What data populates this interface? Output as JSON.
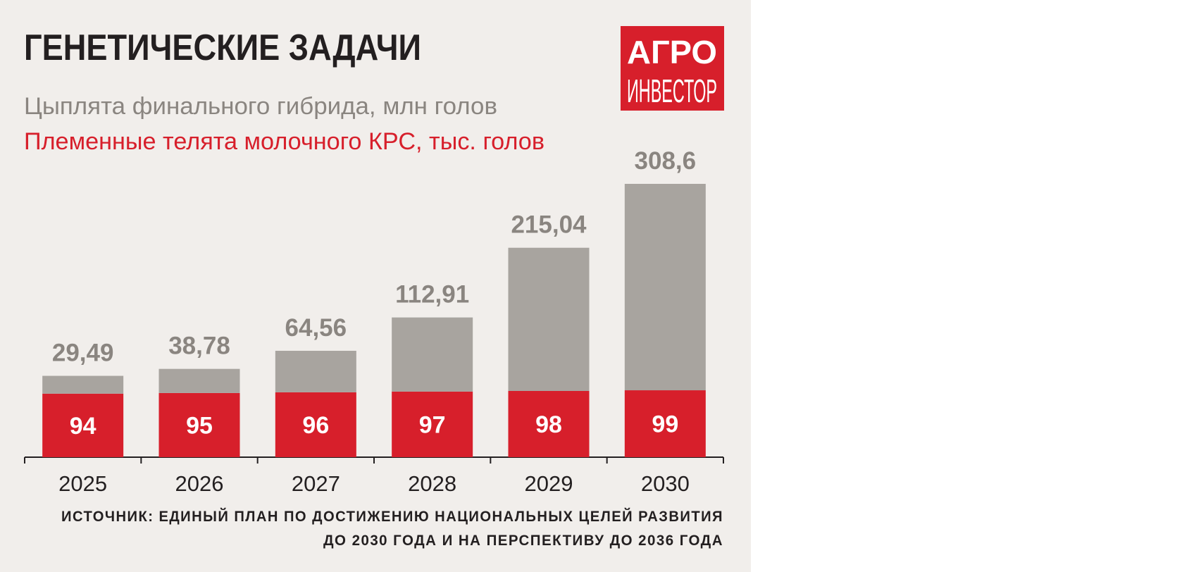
{
  "chart_data": {
    "type": "stacked-bar",
    "title": "ГЕНЕТИЧЕСКИЕ ЗАДАЧИ",
    "logo": [
      "АГРО",
      "ИНВЕСТОР"
    ],
    "categories": [
      "2025",
      "2026",
      "2027",
      "2028",
      "2029",
      "2030"
    ],
    "series": [
      {
        "name": "Племенные телята молочного КРС, тыс. голов",
        "color": "#d71f2b",
        "values": [
          94,
          95,
          96,
          97,
          98,
          99
        ]
      },
      {
        "name": "Цыплята финального гибрида, млн голов",
        "color": "#a8a49f",
        "values": [
          29.49,
          38.78,
          64.56,
          112.91,
          215.04,
          308.6
        ],
        "value_labels": [
          "29,49",
          "38,78",
          "64,56",
          "112,91",
          "215,04",
          "308,6"
        ]
      }
    ],
    "source": [
      "ИСТОЧНИК: ЕДИНЫЙ ПЛАН ПО ДОСТИЖЕНИЮ НАЦИОНАЛЬНЫХ ЦЕЛЕЙ РАЗВИТИЯ",
      "ДО 2030 ГОДА И НА ПЕРСПЕКТИВУ ДО 2036 ГОДА"
    ]
  }
}
